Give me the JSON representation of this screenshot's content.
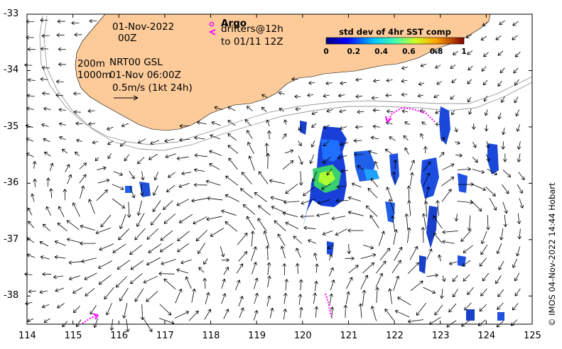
{
  "map": {
    "lon_range": [
      114,
      125
    ],
    "lat_range": [
      -38.5,
      -33
    ],
    "x_ticks": [
      "114",
      "115",
      "116",
      "117",
      "118",
      "119",
      "120",
      "121",
      "122",
      "123",
      "124",
      "125"
    ],
    "y_ticks": [
      "-33",
      "-34",
      "-35",
      "-36",
      "-37",
      "-38"
    ],
    "land_color": "#fdcb9a",
    "sea_color": "#ffffff"
  },
  "labels": {
    "date": "01-Nov-2022",
    "time": "00Z",
    "argo": "Argo",
    "drifters_1": "drifters@12h",
    "drifters_2": "to 01/11 12Z",
    "depth_200": "200m",
    "depth_1000": "1000m",
    "product": "NRT00 GSL",
    "product_time": "01-Nov 06:00Z",
    "scale_arrow": "0.5m/s (1kt 24h)",
    "colorbar_title": "std dev of 4hr SST comp",
    "colorbar_ticks": [
      "0",
      "0.2",
      "0.4",
      "0.6",
      "0.8",
      "1"
    ],
    "credit": "© IMOS 04-Nov-2022 14:44 Hobart"
  },
  "colors": {
    "drifter": "#ff00ff",
    "isobath": "#9a9a9a",
    "arrow": "#000000"
  }
}
